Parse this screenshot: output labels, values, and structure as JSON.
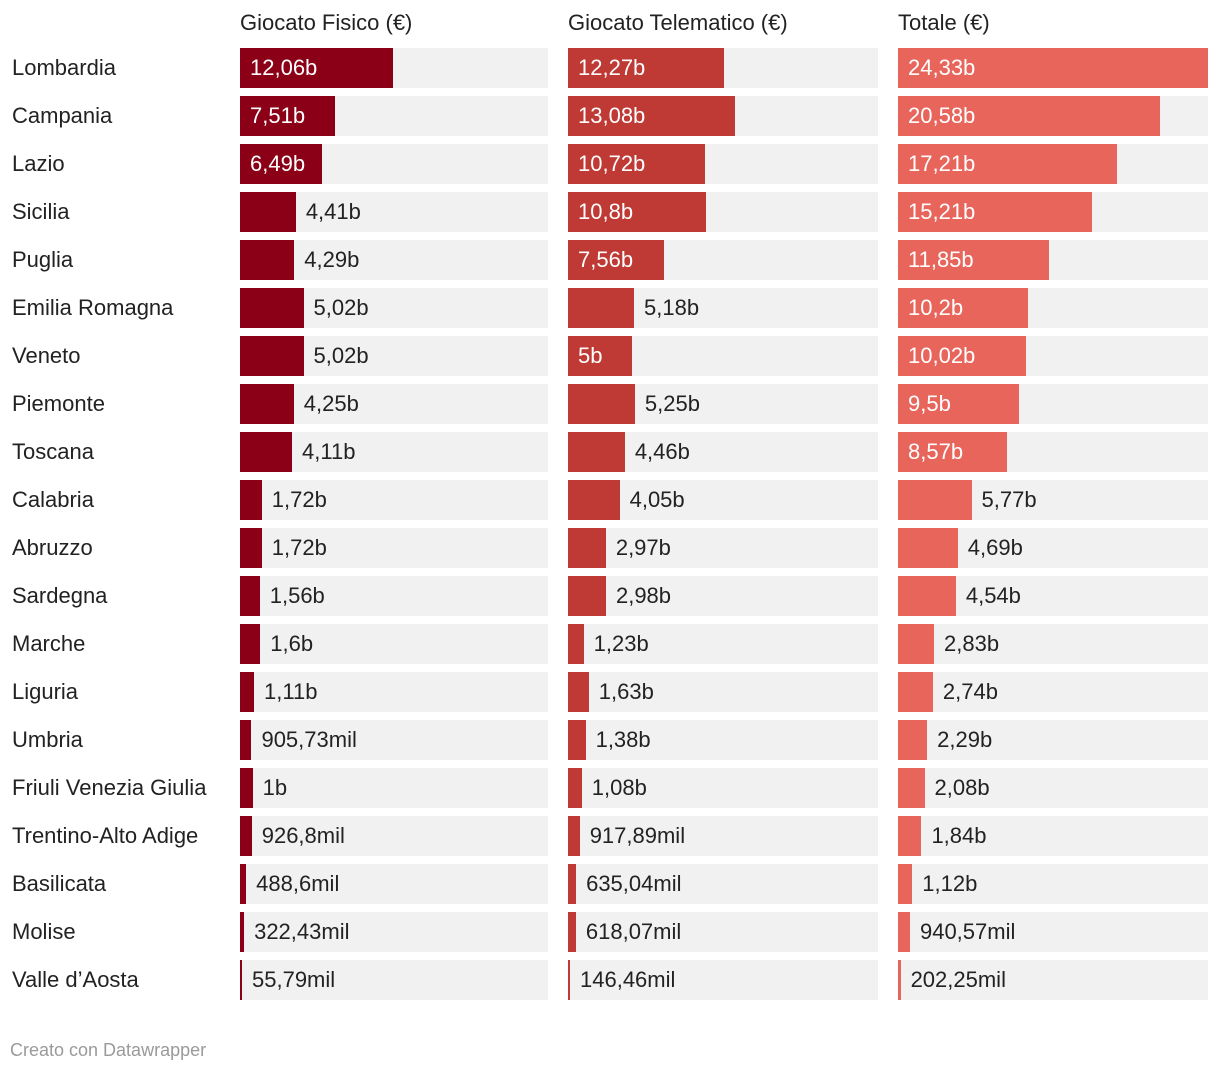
{
  "footer": "Creato con Datawrapper",
  "colors": {
    "fisico": "#8b0016",
    "telematico": "#bf3935",
    "totale": "#e8655c",
    "track": "#f1f1f1"
  },
  "chart_data": {
    "type": "bar",
    "orientation": "horizontal",
    "title": "",
    "categories": [
      "Lombardia",
      "Campania",
      "Lazio",
      "Sicilia",
      "Puglia",
      "Emilia Romagna",
      "Veneto",
      "Piemonte",
      "Toscana",
      "Calabria",
      "Abruzzo",
      "Sardegna",
      "Marche",
      "Liguria",
      "Umbria",
      "Friuli Venezia Giulia",
      "Trentino-Alto Adige",
      "Basilicata",
      "Molise",
      "Valle d’Aosta"
    ],
    "series": [
      {
        "name": "Giocato Fisico (€)",
        "color_key": "fisico",
        "values": [
          12.06,
          7.51,
          6.49,
          4.41,
          4.29,
          5.02,
          5.02,
          4.25,
          4.11,
          1.72,
          1.72,
          1.56,
          1.6,
          1.11,
          0.90573,
          1.0,
          0.9268,
          0.4886,
          0.32243,
          0.05579
        ],
        "labels": [
          "12,06b",
          "7,51b",
          "6,49b",
          "4,41b",
          "4,29b",
          "5,02b",
          "5,02b",
          "4,25b",
          "4,11b",
          "1,72b",
          "1,72b",
          "1,56b",
          "1,6b",
          "1,11b",
          "905,73mil",
          "1b",
          "926,8mil",
          "488,6mil",
          "322,43mil",
          "55,79mil"
        ]
      },
      {
        "name": "Giocato Telematico (€)",
        "color_key": "telematico",
        "values": [
          12.27,
          13.08,
          10.72,
          10.8,
          7.56,
          5.18,
          5.0,
          5.25,
          4.46,
          4.05,
          2.97,
          2.98,
          1.23,
          1.63,
          1.38,
          1.08,
          0.91789,
          0.63504,
          0.61807,
          0.14646
        ],
        "labels": [
          "12,27b",
          "13,08b",
          "10,72b",
          "10,8b",
          "7,56b",
          "5,18b",
          "5b",
          "5,25b",
          "4,46b",
          "4,05b",
          "2,97b",
          "2,98b",
          "1,23b",
          "1,63b",
          "1,38b",
          "1,08b",
          "917,89mil",
          "635,04mil",
          "618,07mil",
          "146,46mil"
        ]
      },
      {
        "name": "Totale (€)",
        "color_key": "totale",
        "values": [
          24.33,
          20.58,
          17.21,
          15.21,
          11.85,
          10.2,
          10.02,
          9.5,
          8.57,
          5.77,
          4.69,
          4.54,
          2.83,
          2.74,
          2.29,
          2.08,
          1.84,
          1.12,
          0.94057,
          0.20225
        ],
        "labels": [
          "24,33b",
          "20,58b",
          "17,21b",
          "15,21b",
          "11,85b",
          "10,2b",
          "10,02b",
          "9,5b",
          "8,57b",
          "5,77b",
          "4,69b",
          "4,54b",
          "2,83b",
          "2,74b",
          "2,29b",
          "2,08b",
          "1,84b",
          "1,12b",
          "940,57mil",
          "202,25mil"
        ]
      }
    ],
    "x_unit": "billions of €",
    "xlim": [
      0,
      24.33
    ],
    "grid": false,
    "legend": "none"
  }
}
